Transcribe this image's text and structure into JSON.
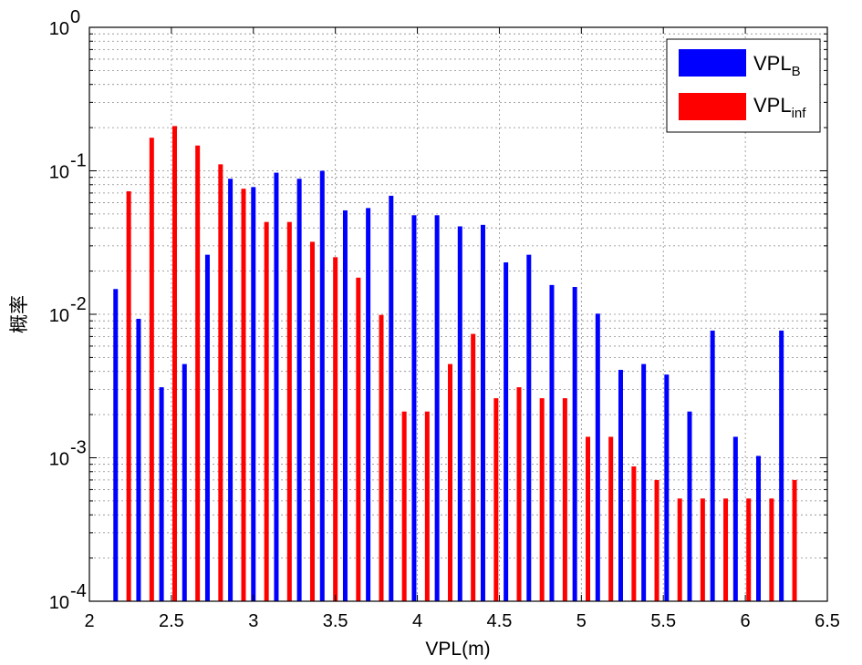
{
  "chart_data": {
    "type": "bar",
    "xlabel": "VPL(m)",
    "ylabel": "概率",
    "xlim": [
      2,
      6.5
    ],
    "ylim": [
      0.0001,
      1
    ],
    "yscale": "log",
    "grid": true,
    "legend_position": "top-right",
    "x_ticks": [
      "2",
      "2.5",
      "3",
      "3.5",
      "4",
      "4.5",
      "5",
      "5.5",
      "6",
      "6.5"
    ],
    "y_ticks": [
      {
        "base": "10",
        "exp": "-4",
        "value": 0.0001
      },
      {
        "base": "10",
        "exp": "-3",
        "value": 0.001
      },
      {
        "base": "10",
        "exp": "-2",
        "value": 0.01
      },
      {
        "base": "10",
        "exp": "-1",
        "value": 0.1
      },
      {
        "base": "10",
        "exp": "0",
        "value": 1
      }
    ],
    "series": [
      {
        "name": "VPL_B",
        "label_main": "VPL",
        "label_sub": "B",
        "color": "#0000ff",
        "x": [
          2.16,
          2.3,
          2.44,
          2.58,
          2.72,
          2.86,
          3.0,
          3.14,
          3.28,
          3.42,
          3.56,
          3.7,
          3.84,
          3.98,
          4.12,
          4.26,
          4.4,
          4.54,
          4.68,
          4.82,
          4.96,
          5.1,
          5.24,
          5.38,
          5.52,
          5.66,
          5.8,
          5.94,
          6.08,
          6.22
        ],
        "y": [
          0.015,
          0.0093,
          0.0031,
          0.0045,
          0.026,
          0.088,
          0.077,
          0.097,
          0.088,
          0.1,
          0.053,
          0.055,
          0.067,
          0.049,
          0.049,
          0.041,
          0.042,
          0.023,
          0.026,
          0.016,
          0.0155,
          0.0101,
          0.0041,
          0.0045,
          0.0038,
          0.0021,
          0.0077,
          0.0014,
          0.00103,
          0.0077
        ]
      },
      {
        "name": "VPL_inf",
        "label_main": "VPL",
        "label_sub": "inf",
        "color": "#ff0000",
        "x": [
          2.24,
          2.38,
          2.52,
          2.66,
          2.8,
          2.94,
          3.08,
          3.22,
          3.36,
          3.5,
          3.64,
          3.78,
          3.92,
          4.06,
          4.2,
          4.34,
          4.48,
          4.62,
          4.76,
          4.9,
          5.04,
          5.18,
          5.32,
          5.46,
          5.6,
          5.74,
          5.88,
          6.02,
          6.16,
          6.3
        ],
        "y": [
          0.072,
          0.17,
          0.205,
          0.15,
          0.111,
          0.075,
          0.044,
          0.044,
          0.032,
          0.025,
          0.018,
          0.0099,
          0.0021,
          0.0021,
          0.0045,
          0.0073,
          0.0026,
          0.0031,
          0.0026,
          0.0026,
          0.0014,
          0.0014,
          0.00087,
          0.0007,
          0.00052,
          0.00052,
          0.00052,
          0.00052,
          0.00052,
          0.0007
        ]
      }
    ]
  }
}
